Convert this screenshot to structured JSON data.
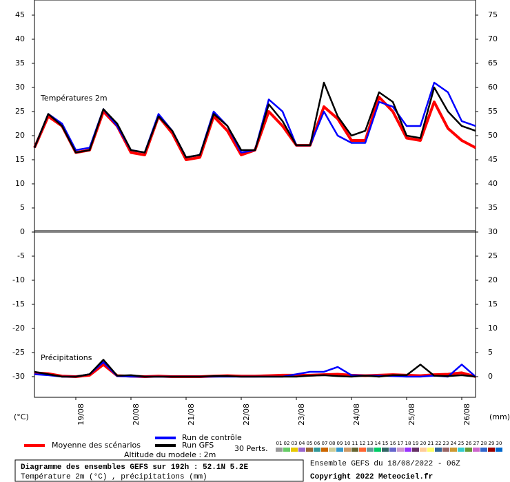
{
  "chart_data": [
    {
      "type": "line",
      "title": "Températures 2m",
      "x": [
        0,
        6,
        12,
        18,
        24,
        30,
        36,
        42,
        48,
        54,
        60,
        66,
        72,
        78,
        84,
        90,
        96,
        102,
        108,
        114,
        120,
        126,
        132,
        138,
        144,
        150,
        156,
        162,
        168,
        174,
        180,
        186,
        192
      ],
      "xlim": [
        0,
        192
      ],
      "ylim": [
        0,
        48.14
      ],
      "yticks": [
        0,
        5,
        10,
        15,
        20,
        25,
        30,
        35,
        40,
        45
      ],
      "y2lim": [
        30,
        78.14
      ],
      "y2ticks": [
        30,
        35,
        40,
        45,
        50,
        55,
        60,
        65,
        70,
        75
      ],
      "series": [
        {
          "name": "Moyenne des scénarios",
          "color": "#ff0000",
          "values": [
            17.5,
            24,
            22,
            16.5,
            17,
            25,
            22,
            16.5,
            16,
            24,
            20.5,
            15,
            15.5,
            24,
            21,
            16,
            17,
            25,
            22,
            18,
            18,
            26,
            23.5,
            19,
            19,
            28,
            25,
            19.5,
            19,
            27,
            21.5,
            19,
            17.5
          ]
        },
        {
          "name": "Run de contrôle",
          "color": "#0000ff",
          "values": [
            17.5,
            24.5,
            22.5,
            17,
            17.5,
            25.5,
            22,
            17,
            16.5,
            24.5,
            21,
            15.5,
            16,
            25,
            22,
            16.5,
            17,
            27.5,
            25,
            18,
            18,
            25,
            20,
            18.5,
            18.5,
            27,
            26,
            22,
            22,
            31,
            29,
            23,
            22
          ]
        },
        {
          "name": "Run GFS",
          "color": "#000000",
          "values": [
            17.5,
            24.5,
            22,
            16.5,
            17,
            25.5,
            22.5,
            17,
            16.5,
            24,
            21,
            15.5,
            16,
            24.5,
            22,
            17,
            17,
            26.5,
            23,
            18,
            18,
            31,
            24,
            20,
            21,
            29,
            27,
            20,
            19.5,
            30,
            25,
            22,
            21
          ]
        }
      ]
    },
    {
      "type": "line",
      "title": "Précipitations",
      "x": [
        0,
        6,
        12,
        18,
        24,
        30,
        36,
        42,
        48,
        54,
        60,
        66,
        72,
        78,
        84,
        90,
        96,
        102,
        108,
        114,
        120,
        126,
        132,
        138,
        144,
        150,
        156,
        162,
        168,
        174,
        180,
        186,
        192
      ],
      "xlim": [
        0,
        192
      ],
      "xticks": [
        {
          "value": 18,
          "label": "19/08"
        },
        {
          "value": 42,
          "label": "20/08"
        },
        {
          "value": 66,
          "label": "21/08"
        },
        {
          "value": 90,
          "label": "22/08"
        },
        {
          "value": 114,
          "label": "23/08"
        },
        {
          "value": 138,
          "label": "24/08"
        },
        {
          "value": 162,
          "label": "25/08"
        },
        {
          "value": 186,
          "label": "26/08"
        }
      ],
      "ylabel": "(°C)",
      "y2label": "(mm)",
      "ylim": [
        -34.29,
        0
      ],
      "yticks": [
        -5,
        -10,
        -15,
        -20,
        -25,
        -30
      ],
      "y2lim": [
        -4.29,
        30
      ],
      "y2ticks": [
        0,
        5,
        10,
        15,
        20,
        25
      ],
      "series": [
        {
          "color": "#ff0000",
          "axis": "y2",
          "values": [
            0.8,
            0.6,
            0.1,
            0,
            0.3,
            2.5,
            0.2,
            0.1,
            0,
            0.1,
            0,
            0,
            0,
            0.1,
            0.2,
            0.1,
            0.1,
            0.2,
            0.3,
            0.3,
            0.3,
            0.4,
            0.5,
            0.3,
            0.2,
            0.3,
            0.4,
            0.3,
            0.2,
            0.4,
            0.5,
            0.8,
            0
          ]
        },
        {
          "color": "#0000ff",
          "axis": "y2",
          "values": [
            0.5,
            0.3,
            0,
            0,
            0.5,
            3,
            0.1,
            0,
            0,
            0,
            0,
            0,
            0,
            0,
            0,
            0,
            0,
            0,
            0,
            0.5,
            1,
            1,
            2,
            0.3,
            0.2,
            0.2,
            0.1,
            0,
            0,
            0.2,
            0,
            2.5,
            0
          ]
        },
        {
          "color": "#000000",
          "axis": "y2",
          "values": [
            1,
            0.5,
            0,
            0,
            0.5,
            3.5,
            0.2,
            0.3,
            0,
            0,
            0,
            0,
            0,
            0.1,
            0.1,
            0,
            0,
            0,
            0,
            0,
            0.2,
            0.3,
            0.1,
            0,
            0.2,
            0,
            0.3,
            0.3,
            2.5,
            0.2,
            0.1,
            0.3,
            0
          ]
        }
      ]
    }
  ],
  "perturbations": {
    "label": "30 Perts.",
    "members": [
      {
        "name": "01",
        "color": "#999999"
      },
      {
        "name": "02",
        "color": "#66cc66"
      },
      {
        "name": "03",
        "color": "#e6c800"
      },
      {
        "name": "04",
        "color": "#9966cc"
      },
      {
        "name": "05",
        "color": "#996633"
      },
      {
        "name": "06",
        "color": "#339999"
      },
      {
        "name": "07",
        "color": "#cc6600"
      },
      {
        "name": "08",
        "color": "#cccc99"
      },
      {
        "name": "09",
        "color": "#3399cc"
      },
      {
        "name": "10",
        "color": "#cc9966"
      },
      {
        "name": "11",
        "color": "#666633"
      },
      {
        "name": "12",
        "color": "#ff6633"
      },
      {
        "name": "13",
        "color": "#669999"
      },
      {
        "name": "14",
        "color": "#00cc66"
      },
      {
        "name": "15",
        "color": "#336666"
      },
      {
        "name": "16",
        "color": "#6666cc"
      },
      {
        "name": "17",
        "color": "#cc99cc"
      },
      {
        "name": "18",
        "color": "#9933ff"
      },
      {
        "name": "19",
        "color": "#663366"
      },
      {
        "name": "20",
        "color": "#ffcc99"
      },
      {
        "name": "21",
        "color": "#ffff66"
      },
      {
        "name": "22",
        "color": "#336699"
      },
      {
        "name": "23",
        "color": "#996666"
      },
      {
        "name": "24",
        "color": "#cc9933"
      },
      {
        "name": "25",
        "color": "#33cccc"
      },
      {
        "name": "26",
        "color": "#669933"
      },
      {
        "name": "27",
        "color": "#cc66cc"
      },
      {
        "name": "28",
        "color": "#3366cc"
      },
      {
        "name": "29",
        "color": "#990000"
      },
      {
        "name": "30",
        "color": "#0066cc"
      }
    ]
  },
  "altitude": "Altitude du modele : 2m",
  "footer": {
    "title": "Diagramme des ensembles GEFS sur 192h : 52.1N 5.2E",
    "subtitle": "Température 2m (°C) , précipitations (mm)",
    "run": "Ensemble GEFS du 18/08/2022 - 06Z",
    "copyright": "Copyright 2022 Meteociel.fr"
  }
}
